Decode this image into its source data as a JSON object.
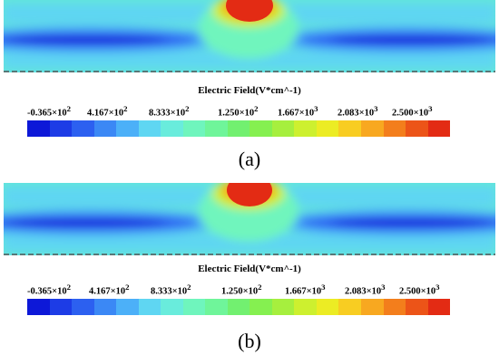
{
  "colorbar_title": "Electric Field(V*cm^-1)",
  "scale_colors": [
    "#0d18d8",
    "#1d3ce6",
    "#2c60f0",
    "#3b88f5",
    "#4cb0f8",
    "#5fd6f2",
    "#69ecdc",
    "#6ff5bd",
    "#6ff59a",
    "#72f070",
    "#85f050",
    "#a6ef3e",
    "#cdf02f",
    "#ecec24",
    "#f8cd22",
    "#f8a820",
    "#f37e1c",
    "#ec5418",
    "#e32b14"
  ],
  "panels": [
    {
      "caption": "(a)",
      "tick_labels": [
        {
          "mantissa": "-0.365",
          "exp": "2"
        },
        {
          "mantissa": "4.167",
          "exp": "2"
        },
        {
          "mantissa": "8.333",
          "exp": "2"
        },
        {
          "mantissa": "1.250",
          "exp": "2"
        },
        {
          "mantissa": "1.667",
          "exp": "3"
        },
        {
          "mantissa": "2.083",
          "exp": "3"
        },
        {
          "mantissa": "2.500",
          "exp": "3"
        }
      ]
    },
    {
      "caption": "(b)",
      "tick_labels": [
        {
          "mantissa": "-0.365",
          "exp": "2"
        },
        {
          "mantissa": "4.167",
          "exp": "2"
        },
        {
          "mantissa": "8.333",
          "exp": "2"
        },
        {
          "mantissa": "1.250",
          "exp": "2"
        },
        {
          "mantissa": "1.667",
          "exp": "3"
        },
        {
          "mantissa": "2.083",
          "exp": "3"
        },
        {
          "mantissa": "2.500",
          "exp": "3"
        }
      ]
    }
  ]
}
